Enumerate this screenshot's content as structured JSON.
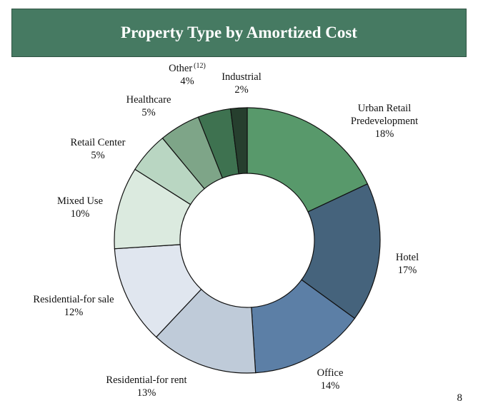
{
  "header": {
    "title": "Property Type by Amortized Cost"
  },
  "page_number": "8",
  "chart_data": {
    "type": "pie",
    "donut": true,
    "title": "Property Type by Amortized Cost",
    "legend": "none",
    "slices": [
      {
        "category": "Urban Retail Predevelopment",
        "label_lines": [
          "Urban Retail",
          "Predevelopment"
        ],
        "value": 18,
        "value_label": "18%",
        "color": "#58996b"
      },
      {
        "category": "Hotel",
        "label_lines": [
          "Hotel"
        ],
        "value": 17,
        "value_label": "17%",
        "color": "#45637c"
      },
      {
        "category": "Office",
        "label_lines": [
          "Office"
        ],
        "value": 14,
        "value_label": "14%",
        "color": "#5c7fa6"
      },
      {
        "category": "Residential-for rent",
        "label_lines": [
          "Residential-for rent"
        ],
        "value": 13,
        "value_label": "13%",
        "color": "#bfcbd9"
      },
      {
        "category": "Residential-for sale",
        "label_lines": [
          "Residential-for sale"
        ],
        "value": 12,
        "value_label": "12%",
        "color": "#e0e6ef"
      },
      {
        "category": "Mixed Use",
        "label_lines": [
          "Mixed Use"
        ],
        "value": 10,
        "value_label": "10%",
        "color": "#dbeadf"
      },
      {
        "category": "Retail Center",
        "label_lines": [
          "Retail Center"
        ],
        "value": 5,
        "value_label": "5%",
        "color": "#b9d6c2"
      },
      {
        "category": "Healthcare",
        "label_lines": [
          "Healthcare"
        ],
        "value": 5,
        "value_label": "5%",
        "color": "#7ea588"
      },
      {
        "category": "Other",
        "label_lines": [
          "Other"
        ],
        "footnote": "(12)",
        "value": 4,
        "value_label": "4%",
        "color": "#3e7250"
      },
      {
        "category": "Industrial",
        "label_lines": [
          "Industrial"
        ],
        "value": 2,
        "value_label": "2%",
        "color": "#263f2e"
      }
    ]
  }
}
